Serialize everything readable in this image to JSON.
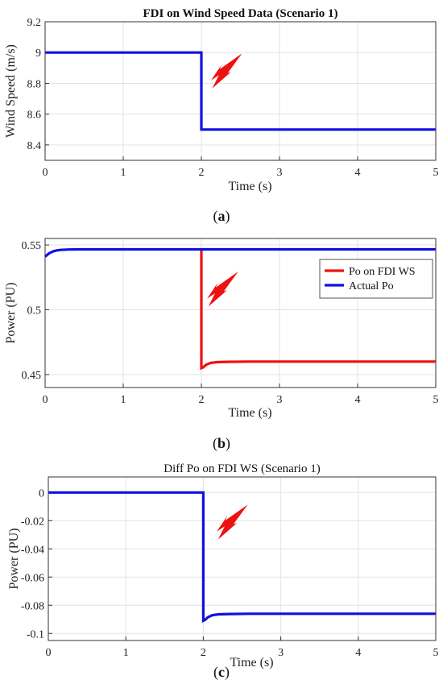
{
  "chart_data": [
    {
      "type": "line",
      "title": "FDI on Wind Speed Data (Scenario 1)",
      "xlabel": "Time (s)",
      "ylabel": "Wind Speed (m/s)",
      "xlim": [
        0,
        5
      ],
      "ylim": [
        8.3,
        9.2
      ],
      "xticks": [
        "0",
        "1",
        "2",
        "3",
        "4",
        "5"
      ],
      "yticks": [
        "8.4",
        "8.6",
        "8.8",
        "9",
        "9.2"
      ],
      "grid": true,
      "caption_letter": "a",
      "series": [
        {
          "color": "#1010e0",
          "x": [
            0,
            2,
            2,
            5
          ],
          "y": [
            9.0,
            9.0,
            8.5,
            8.5
          ]
        }
      ],
      "bolt": {
        "x": 2.2,
        "y": 8.89
      }
    },
    {
      "type": "line",
      "title": "",
      "xlabel": "Time (s)",
      "ylabel": "Power (PU)",
      "xlim": [
        0,
        5
      ],
      "ylim": [
        0.44,
        0.555
      ],
      "xticks": [
        "0",
        "1",
        "2",
        "3",
        "4",
        "5"
      ],
      "yticks": [
        "0.45",
        "0.5",
        "0.55"
      ],
      "grid": true,
      "legend_position": "top-right",
      "caption_letter": "b",
      "series": [
        {
          "name": "Po on FDI WS",
          "color": "#ee1111",
          "x": [
            2,
            2,
            2.02,
            2.06,
            2.12,
            2.2,
            2.35,
            2.6,
            5
          ],
          "y": [
            0.546,
            0.455,
            0.4555,
            0.4575,
            0.459,
            0.4596,
            0.4598,
            0.46,
            0.46
          ]
        },
        {
          "name": "Actual Po",
          "color": "#1010e0",
          "x": [
            0,
            0.05,
            0.1,
            0.15,
            0.2,
            0.3,
            0.45,
            0.6,
            5
          ],
          "y": [
            0.541,
            0.5435,
            0.545,
            0.5458,
            0.5462,
            0.5465,
            0.5466,
            0.5466,
            0.5466
          ]
        }
      ],
      "bolt": {
        "x": 2.15,
        "y": 0.517
      }
    },
    {
      "type": "line",
      "title": "Diff Po on FDI WS (Scenario 1)",
      "xlabel": "Time (s)",
      "ylabel": "Power (PU)",
      "xlim": [
        0,
        5
      ],
      "ylim": [
        -0.105,
        0.011
      ],
      "xticks": [
        "0",
        "1",
        "2",
        "3",
        "4",
        "5"
      ],
      "yticks": [
        "0",
        "-0.02",
        "-0.04",
        "-0.06",
        "-0.08",
        "-0.1"
      ],
      "grid": true,
      "caption_letter": "c",
      "series": [
        {
          "color": "#1010e0",
          "x": [
            0,
            2,
            2,
            2.02,
            2.06,
            2.12,
            2.2,
            2.35,
            2.6,
            5
          ],
          "y": [
            0,
            0,
            -0.091,
            -0.0905,
            -0.0885,
            -0.087,
            -0.0864,
            -0.0862,
            -0.086,
            -0.086
          ]
        }
      ],
      "bolt": {
        "x": 2.25,
        "y": -0.02
      }
    }
  ]
}
